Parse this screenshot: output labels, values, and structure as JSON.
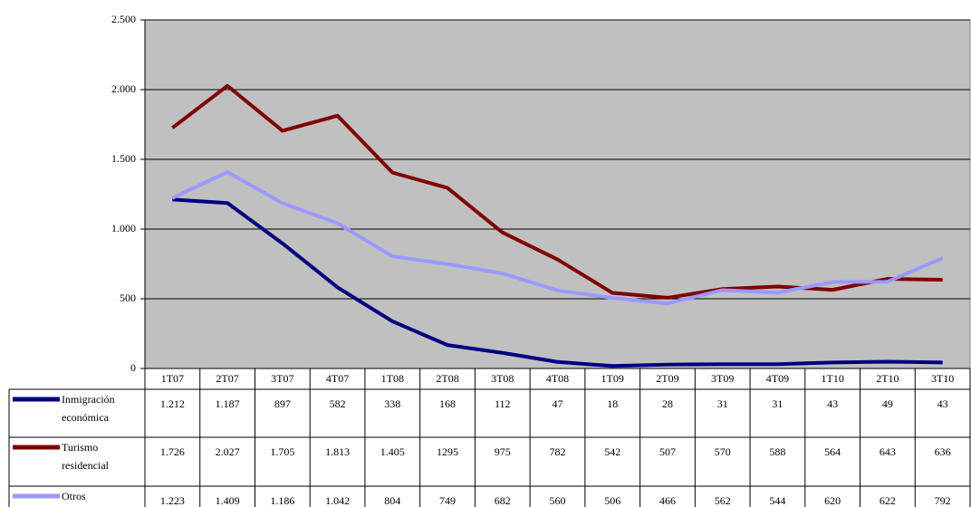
{
  "chart_data": {
    "type": "line",
    "categories": [
      "1T07",
      "2T07",
      "3T07",
      "4T07",
      "1T08",
      "2T08",
      "3T08",
      "4T08",
      "1T09",
      "2T09",
      "3T09",
      "4T09",
      "1T10",
      "2T10",
      "3T10"
    ],
    "series": [
      {
        "name": "Inmigración económica",
        "color": "#000080",
        "values": [
          1212,
          1187,
          897,
          582,
          338,
          168,
          112,
          47,
          18,
          28,
          31,
          31,
          43,
          49,
          43
        ],
        "value_labels": [
          "1.212",
          "1.187",
          "897",
          "582",
          "338",
          "168",
          "112",
          "47",
          "18",
          "28",
          "31",
          "31",
          "43",
          "49",
          "43"
        ]
      },
      {
        "name": "Turismo residencial",
        "color": "#800000",
        "values": [
          1726,
          2027,
          1705,
          1813,
          1405,
          1295,
          975,
          782,
          542,
          507,
          570,
          588,
          564,
          643,
          636
        ],
        "value_labels": [
          "1.726",
          "2.027",
          "1.705",
          "1.813",
          "1.405",
          "1295",
          "975",
          "782",
          "542",
          "507",
          "570",
          "588",
          "564",
          "643",
          "636"
        ]
      },
      {
        "name": "Otros",
        "color": "#9999ff",
        "values": [
          1223,
          1409,
          1186,
          1042,
          804,
          749,
          682,
          560,
          506,
          466,
          562,
          544,
          620,
          622,
          792
        ],
        "value_labels": [
          "1.223",
          "1.409",
          "1.186",
          "1.042",
          "804",
          "749",
          "682",
          "560",
          "506",
          "466",
          "562",
          "544",
          "620",
          "622",
          "792"
        ]
      }
    ],
    "ylim": [
      0,
      2500
    ],
    "yticks": [
      0,
      500,
      {
        "value": 1000,
        "label": "1.000"
      },
      {
        "value": 1500,
        "label": "1.500"
      },
      {
        "value": 2000,
        "label": "2.000"
      },
      {
        "value": 2500,
        "label": "2.500"
      }
    ],
    "grid": true
  }
}
